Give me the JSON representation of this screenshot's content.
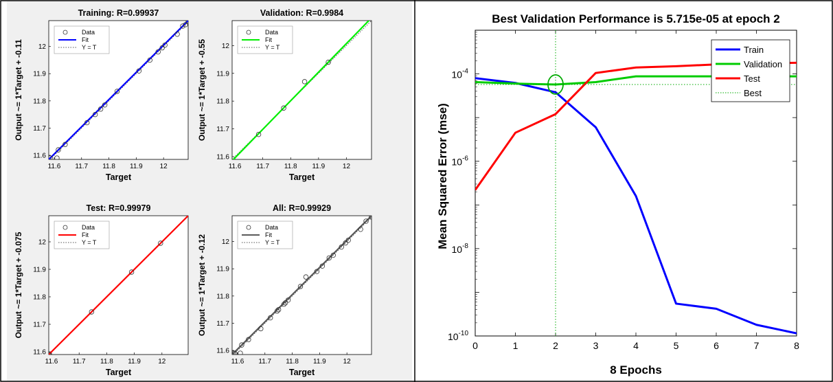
{
  "regression_panels": [
    {
      "title": "Training: R=0.99937",
      "xlabel": "Target",
      "ylabel": "Output ~= 1*Target + -0.11",
      "xlim": [
        11.58,
        12.09
      ],
      "ylim": [
        11.585,
        12.095
      ],
      "xticks": [
        11.6,
        11.7,
        11.8,
        11.9,
        12
      ],
      "yticks": [
        11.6,
        11.7,
        11.8,
        11.9,
        12
      ],
      "tick_labels": [
        "11.6",
        "11.7",
        "11.8",
        "11.9",
        "12"
      ],
      "fit_color": "#0000ff",
      "legend": [
        "Data",
        "Fit",
        "Y = T"
      ],
      "fit_line": [
        [
          11.58,
          11.585
        ],
        [
          12.09,
          12.095
        ]
      ],
      "points": [
        [
          11.585,
          11.59
        ],
        [
          11.61,
          11.59
        ],
        [
          11.615,
          11.62
        ],
        [
          11.64,
          11.64
        ],
        [
          11.72,
          11.72
        ],
        [
          11.75,
          11.75
        ],
        [
          11.77,
          11.77
        ],
        [
          11.785,
          11.785
        ],
        [
          11.83,
          11.835
        ],
        [
          11.91,
          11.91
        ],
        [
          11.95,
          11.95
        ],
        [
          11.98,
          11.98
        ],
        [
          11.995,
          11.995
        ],
        [
          12.005,
          12.005
        ],
        [
          12.05,
          12.045
        ],
        [
          12.07,
          12.075
        ],
        [
          12.08,
          12.08
        ],
        [
          12.09,
          12.09
        ]
      ]
    },
    {
      "title": "Validation: R=0.9984",
      "xlabel": "Target",
      "ylabel": "Output ~= 1*Target + -0.55",
      "xlim": [
        11.59,
        12.09
      ],
      "ylim": [
        11.59,
        12.09
      ],
      "xticks": [
        11.6,
        11.7,
        11.8,
        11.9,
        12
      ],
      "yticks": [
        11.6,
        11.7,
        11.8,
        11.9,
        12
      ],
      "tick_labels": [
        "11.6",
        "11.7",
        "11.8",
        "11.9",
        "12"
      ],
      "fit_color": "#00ee00",
      "legend": [
        "Data",
        "Fit",
        "Y = T"
      ],
      "fit_line": [
        [
          11.59,
          11.585
        ],
        [
          12.09,
          12.1
        ]
      ],
      "points": [
        [
          11.685,
          11.68
        ],
        [
          11.775,
          11.775
        ],
        [
          11.85,
          11.87
        ],
        [
          11.935,
          11.94
        ]
      ]
    },
    {
      "title": "Test: R=0.99979",
      "xlabel": "Target",
      "ylabel": "Output ~= 1*Target + -0.075",
      "xlim": [
        11.59,
        12.095
      ],
      "ylim": [
        11.59,
        12.095
      ],
      "xticks": [
        11.6,
        11.7,
        11.8,
        11.9,
        12
      ],
      "yticks": [
        11.6,
        11.7,
        11.8,
        11.9,
        12
      ],
      "tick_labels": [
        "11.6",
        "11.7",
        "11.8",
        "11.9",
        "12"
      ],
      "fit_color": "#ff0000",
      "legend": [
        "Data",
        "Fit",
        "Y = T"
      ],
      "fit_line": [
        [
          11.59,
          11.59
        ],
        [
          12.095,
          12.095
        ]
      ],
      "points": [
        [
          11.59,
          11.59
        ],
        [
          11.745,
          11.745
        ],
        [
          11.89,
          11.89
        ],
        [
          11.995,
          11.995
        ]
      ]
    },
    {
      "title": "All: R=0.99929",
      "xlabel": "Target",
      "ylabel": "Output ~= 1*Target + -0.12",
      "xlim": [
        11.58,
        12.09
      ],
      "ylim": [
        11.585,
        12.095
      ],
      "xticks": [
        11.6,
        11.7,
        11.8,
        11.9,
        12
      ],
      "yticks": [
        11.6,
        11.7,
        11.8,
        11.9,
        12
      ],
      "tick_labels": [
        "11.6",
        "11.7",
        "11.8",
        "11.9",
        "12"
      ],
      "fit_color": "#5a5a5a",
      "legend": [
        "Data",
        "Fit",
        "Y = T"
      ],
      "fit_line": [
        [
          11.58,
          11.585
        ],
        [
          12.09,
          12.095
        ]
      ],
      "points": [
        [
          11.585,
          11.59
        ],
        [
          11.59,
          11.59
        ],
        [
          11.61,
          11.59
        ],
        [
          11.615,
          11.62
        ],
        [
          11.64,
          11.64
        ],
        [
          11.685,
          11.68
        ],
        [
          11.72,
          11.72
        ],
        [
          11.745,
          11.745
        ],
        [
          11.75,
          11.75
        ],
        [
          11.77,
          11.77
        ],
        [
          11.775,
          11.775
        ],
        [
          11.785,
          11.785
        ],
        [
          11.83,
          11.835
        ],
        [
          11.85,
          11.87
        ],
        [
          11.89,
          11.89
        ],
        [
          11.91,
          11.91
        ],
        [
          11.935,
          11.94
        ],
        [
          11.95,
          11.95
        ],
        [
          11.98,
          11.98
        ],
        [
          11.995,
          11.995
        ],
        [
          12.005,
          12.005
        ],
        [
          12.05,
          12.045
        ],
        [
          12.07,
          12.075
        ],
        [
          12.09,
          12.09
        ]
      ]
    }
  ],
  "chart_data": {
    "type": "line",
    "title": "Best Validation Performance is 5.715e-05 at epoch 2",
    "xlabel": "8 Epochs",
    "ylabel": "Mean Squared Error  (mse)",
    "xlim": [
      0,
      8
    ],
    "ylim": [
      1e-10,
      0.001
    ],
    "yscale": "log",
    "xticks": [
      0,
      1,
      2,
      3,
      4,
      5,
      6,
      7,
      8
    ],
    "xtick_labels": [
      "0",
      "1",
      "2",
      "3",
      "4",
      "5",
      "6",
      "7",
      "8"
    ],
    "yticks": [
      {
        "value": 1e-10,
        "base": "10",
        "exp": "-10"
      },
      {
        "value": 1e-08,
        "base": "10",
        "exp": "-8"
      },
      {
        "value": 1e-06,
        "base": "10",
        "exp": "-6"
      },
      {
        "value": 0.0001,
        "base": "10",
        "exp": "-4"
      }
    ],
    "legend_position": "top-right",
    "x": [
      0,
      1,
      2,
      3,
      4,
      5,
      6,
      7,
      8
    ],
    "series": [
      {
        "name": "Train",
        "color": "#0000ff",
        "values": [
          8e-05,
          6.2e-05,
          3.8e-05,
          6e-06,
          1.6e-07,
          5.5e-10,
          4.2e-10,
          1.8e-10,
          1.15e-10
        ]
      },
      {
        "name": "Validation",
        "color": "#00cc00",
        "values": [
          6.5e-05,
          6e-05,
          5.715e-05,
          6.5e-05,
          8.8e-05,
          8.8e-05,
          8.8e-05,
          8.8e-05,
          8.8e-05
        ]
      },
      {
        "name": "Test",
        "color": "#ff0000",
        "values": [
          2.2e-07,
          4.5e-06,
          1.2e-05,
          0.000105,
          0.00014,
          0.00015,
          0.000165,
          0.000175,
          0.00018
        ]
      }
    ],
    "best": {
      "name": "Best",
      "epoch": 2,
      "value": 5.715e-05,
      "color": "#00aa00"
    }
  }
}
